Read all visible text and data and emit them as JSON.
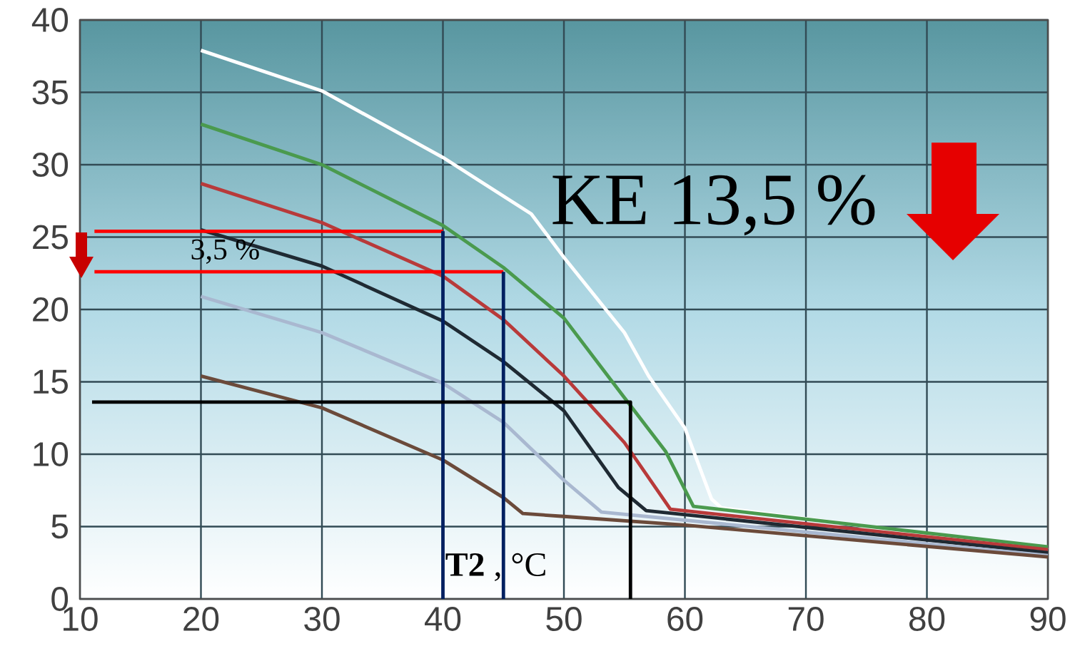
{
  "chart_data": {
    "type": "line",
    "xlim": [
      10,
      90
    ],
    "ylim": [
      0,
      40
    ],
    "xticks": [
      10,
      20,
      30,
      40,
      50,
      60,
      70,
      80,
      90
    ],
    "yticks": [
      0,
      5,
      10,
      15,
      20,
      25,
      30,
      35,
      40
    ],
    "grid": true,
    "annotations": [
      "KE 13,5 %",
      "3,5 %",
      "**T2** , °C"
    ],
    "series": [
      {
        "color": "#ffffff",
        "x": [
          20,
          30,
          40,
          47.3,
          50,
          55,
          57,
          60,
          62.2,
          63,
          90
        ],
        "values": [
          37.9,
          35.1,
          30.5,
          26.6,
          23.6,
          18.4,
          15.4,
          11.8,
          6.9,
          6.3,
          3.4
        ]
      },
      {
        "color": "#4a9a4e",
        "x": [
          20,
          30,
          40,
          45,
          50,
          55,
          58.4,
          60.7,
          90
        ],
        "values": [
          32.8,
          30.0,
          25.8,
          22.9,
          19.4,
          13.9,
          10.2,
          6.4,
          3.6
        ]
      },
      {
        "color": "#b83a3a",
        "x": [
          20,
          30,
          40,
          45,
          50,
          55,
          58.8,
          90
        ],
        "values": [
          28.7,
          26.0,
          22.3,
          19.3,
          15.4,
          10.8,
          6.2,
          3.4
        ]
      },
      {
        "color": "#1f2a33",
        "x": [
          20,
          30,
          40,
          45,
          50,
          54.5,
          56.8,
          90
        ],
        "values": [
          25.5,
          23.0,
          19.2,
          16.4,
          13.0,
          7.7,
          6.1,
          3.2
        ]
      },
      {
        "color": "#a9b8d0",
        "x": [
          20,
          30,
          40,
          45,
          50,
          53.1,
          90
        ],
        "values": [
          20.9,
          18.4,
          14.9,
          12.2,
          8.2,
          6.0,
          3.0
        ]
      },
      {
        "color": "#6b4a3a",
        "x": [
          20,
          30,
          40,
          45,
          46.6,
          50,
          60,
          90
        ],
        "values": [
          15.4,
          13.2,
          9.6,
          7.0,
          5.9,
          5.7,
          5.1,
          2.9
        ]
      },
      {
        "type": "line",
        "color": "#ff0000",
        "x": [
          11.2,
          40
        ],
        "values": [
          25.4,
          25.4
        ]
      },
      {
        "type": "line",
        "color": "#ff0000",
        "x": [
          11.2,
          45
        ],
        "values": [
          22.6,
          22.6
        ]
      },
      {
        "type": "line",
        "color": "#002060",
        "x": [
          40,
          40
        ],
        "values": [
          0,
          25.4
        ]
      },
      {
        "type": "line",
        "color": "#002060",
        "x": [
          45,
          45
        ],
        "values": [
          0,
          22.6
        ]
      },
      {
        "type": "line",
        "color": "#000000",
        "x": [
          55.5,
          55.5,
          11
        ],
        "values": [
          0,
          13.6,
          13.6
        ]
      }
    ]
  }
}
